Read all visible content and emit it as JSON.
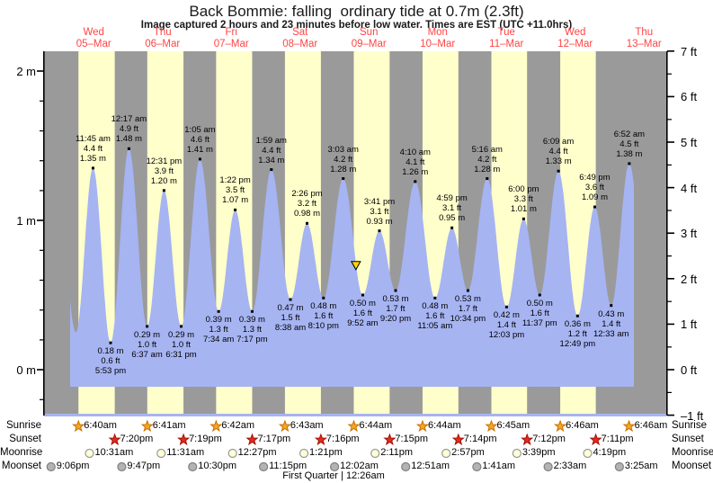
{
  "title": "Back Bommie: falling  ordinary tide at 0.7m (2.3ft)",
  "subtitle": "Image captured 2 hours and 23 minutes before low water. Times are EST (UTC +11.0hrs)",
  "footer": "First Quarter | 12:26am",
  "colors": {
    "night_band": "#9a9a9a",
    "day_band": "#ffffcc",
    "tide_fill": "#a6b4f2",
    "day_label": "#ff4444",
    "sunrise_star": "#f5a623",
    "sunrise_star_edge": "#c87000",
    "sunset_star": "#e8291c",
    "sunset_star_edge": "#9c130a",
    "moonrise_circle": "#ffffd8",
    "moonrise_edge": "#9a9a9a",
    "moonset_circle": "#b3b3b3",
    "moonset_edge": "#808080",
    "marker": "#ffd700"
  },
  "chart_data": {
    "type": "area",
    "title": "Back Bommie tide heights, 05-Mar to 13-Mar",
    "categories_days": [
      {
        "name": "Wed",
        "date": "05–Mar"
      },
      {
        "name": "Thu",
        "date": "06–Mar"
      },
      {
        "name": "Fri",
        "date": "07–Mar"
      },
      {
        "name": "Sat",
        "date": "08–Mar"
      },
      {
        "name": "Sun",
        "date": "09–Mar"
      },
      {
        "name": "Mon",
        "date": "10–Mar"
      },
      {
        "name": "Tue",
        "date": "11–Mar"
      },
      {
        "name": "Wed",
        "date": "12–Mar"
      },
      {
        "name": "Thu",
        "date": "13–Mar"
      }
    ],
    "y_axis": {
      "left_unit": "m",
      "right_unit": "ft",
      "range_m": [
        -0.305,
        2.134
      ],
      "left_ticks": [
        {
          "v": 0,
          "label": "0 m"
        },
        {
          "v": 1,
          "label": "1 m"
        },
        {
          "v": 2,
          "label": "2 m"
        }
      ],
      "left_minor_ticks_m": [
        -0.2,
        0.2,
        0.4,
        0.6,
        0.8,
        1.2,
        1.4,
        1.6,
        1.8
      ],
      "right_ticks": [
        {
          "v": -1,
          "label": "–1 ft"
        },
        {
          "v": 0,
          "label": "0 ft"
        },
        {
          "v": 1,
          "label": "1 ft"
        },
        {
          "v": 2,
          "label": "2 ft"
        },
        {
          "v": 3,
          "label": "3 ft"
        },
        {
          "v": 4,
          "label": "4 ft"
        },
        {
          "v": 5,
          "label": "5 ft"
        },
        {
          "v": 6,
          "label": "6 ft"
        },
        {
          "v": 7,
          "label": "7 ft"
        }
      ]
    },
    "tides": [
      {
        "kind": "high",
        "time": "11:45 am",
        "ft": "4.4 ft",
        "m": "1.35 m",
        "day": 0,
        "hour": 11.75,
        "height_m": 1.35
      },
      {
        "kind": "low",
        "time": "5:53 pm",
        "ft": "0.6 ft",
        "m": "0.18 m",
        "day": 0,
        "hour": 17.883,
        "height_m": 0.18
      },
      {
        "kind": "high",
        "time": "12:17 am",
        "ft": "4.9 ft",
        "m": "1.48 m",
        "day": 1,
        "hour": 0.283,
        "height_m": 1.48
      },
      {
        "kind": "low",
        "time": "6:37 am",
        "ft": "1.0 ft",
        "m": "0.29 m",
        "day": 1,
        "hour": 6.617,
        "height_m": 0.29
      },
      {
        "kind": "high",
        "time": "12:31 pm",
        "ft": "3.9 ft",
        "m": "1.20 m",
        "day": 1,
        "hour": 12.517,
        "height_m": 1.2
      },
      {
        "kind": "low",
        "time": "6:31 pm",
        "ft": "1.0 ft",
        "m": "0.29 m",
        "day": 1,
        "hour": 18.517,
        "height_m": 0.29
      },
      {
        "kind": "high",
        "time": "1:05 am",
        "ft": "4.6 ft",
        "m": "1.41 m",
        "day": 2,
        "hour": 1.083,
        "height_m": 1.41
      },
      {
        "kind": "low",
        "time": "7:34 am",
        "ft": "1.3 ft",
        "m": "0.39 m",
        "day": 2,
        "hour": 7.567,
        "height_m": 0.39
      },
      {
        "kind": "high",
        "time": "1:22 pm",
        "ft": "3.5 ft",
        "m": "1.07 m",
        "day": 2,
        "hour": 13.367,
        "height_m": 1.07
      },
      {
        "kind": "low",
        "time": "7:17 pm",
        "ft": "1.3 ft",
        "m": "0.39 m",
        "day": 2,
        "hour": 19.283,
        "height_m": 0.39
      },
      {
        "kind": "high",
        "time": "1:59 am",
        "ft": "4.4 ft",
        "m": "1.34 m",
        "day": 3,
        "hour": 1.983,
        "height_m": 1.34
      },
      {
        "kind": "low",
        "time": "8:38 am",
        "ft": "1.5 ft",
        "m": "0.47 m",
        "day": 3,
        "hour": 8.633,
        "height_m": 0.47
      },
      {
        "kind": "high",
        "time": "2:26 pm",
        "ft": "3.2 ft",
        "m": "0.98 m",
        "day": 3,
        "hour": 14.433,
        "height_m": 0.98
      },
      {
        "kind": "low",
        "time": "8:10 pm",
        "ft": "1.6 ft",
        "m": "0.48 m",
        "day": 3,
        "hour": 20.167,
        "height_m": 0.48
      },
      {
        "kind": "high",
        "time": "3:03 am",
        "ft": "4.2 ft",
        "m": "1.28 m",
        "day": 4,
        "hour": 3.05,
        "height_m": 1.28
      },
      {
        "kind": "low",
        "time": "9:52 am",
        "ft": "1.6 ft",
        "m": "0.50 m",
        "day": 4,
        "hour": 9.867,
        "height_m": 0.5
      },
      {
        "kind": "high",
        "time": "3:41 pm",
        "ft": "3.1 ft",
        "m": "0.93 m",
        "day": 4,
        "hour": 15.683,
        "height_m": 0.93
      },
      {
        "kind": "low",
        "time": "9:20 pm",
        "ft": "1.7 ft",
        "m": "0.53 m",
        "day": 4,
        "hour": 21.333,
        "height_m": 0.53
      },
      {
        "kind": "high",
        "time": "4:10 am",
        "ft": "4.1 ft",
        "m": "1.26 m",
        "day": 5,
        "hour": 4.167,
        "height_m": 1.26
      },
      {
        "kind": "low",
        "time": "11:05 am",
        "ft": "1.6 ft",
        "m": "0.48 m",
        "day": 5,
        "hour": 11.083,
        "height_m": 0.48
      },
      {
        "kind": "high",
        "time": "4:59 pm",
        "ft": "3.1 ft",
        "m": "0.95 m",
        "day": 5,
        "hour": 16.983,
        "height_m": 0.95
      },
      {
        "kind": "low",
        "time": "10:34 pm",
        "ft": "1.7 ft",
        "m": "0.53 m",
        "day": 5,
        "hour": 22.567,
        "height_m": 0.53
      },
      {
        "kind": "high",
        "time": "5:16 am",
        "ft": "4.2 ft",
        "m": "1.28 m",
        "day": 6,
        "hour": 5.267,
        "height_m": 1.28
      },
      {
        "kind": "low",
        "time": "12:03 pm",
        "ft": "1.4 ft",
        "m": "0.42 m",
        "day": 6,
        "hour": 12.05,
        "height_m": 0.42
      },
      {
        "kind": "high",
        "time": "6:00 pm",
        "ft": "3.3 ft",
        "m": "1.01 m",
        "day": 6,
        "hour": 18.0,
        "height_m": 1.01
      },
      {
        "kind": "low",
        "time": "11:37 pm",
        "ft": "1.6 ft",
        "m": "0.50 m",
        "day": 6,
        "hour": 23.617,
        "height_m": 0.5
      },
      {
        "kind": "high",
        "time": "6:09 am",
        "ft": "4.4 ft",
        "m": "1.33 m",
        "day": 7,
        "hour": 6.15,
        "height_m": 1.33
      },
      {
        "kind": "low",
        "time": "12:49 pm",
        "ft": "1.2 ft",
        "m": "0.36 m",
        "day": 7,
        "hour": 12.817,
        "height_m": 0.36
      },
      {
        "kind": "high",
        "time": "6:49 pm",
        "ft": "3.6 ft",
        "m": "1.09 m",
        "day": 7,
        "hour": 18.817,
        "height_m": 1.09
      },
      {
        "kind": "low",
        "time": "12:33 am",
        "ft": "1.4 ft",
        "m": "0.43 m",
        "day": 8,
        "hour": 0.55,
        "height_m": 0.43
      },
      {
        "kind": "high",
        "time": "6:52 am",
        "ft": "4.5 ft",
        "m": "1.38 m",
        "day": 8,
        "hour": 6.867,
        "height_m": 1.38
      }
    ],
    "current_level_marker": {
      "height_m": 0.7,
      "day": 4,
      "hour": 7.483
    },
    "astro_rows": [
      {
        "label": "Sunrise",
        "icon": "sunrise-star",
        "events": [
          {
            "time": "6:40am",
            "day": 0,
            "hour": 6.667
          },
          {
            "time": "6:41am",
            "day": 1,
            "hour": 6.683
          },
          {
            "time": "6:42am",
            "day": 2,
            "hour": 6.7
          },
          {
            "time": "6:43am",
            "day": 3,
            "hour": 6.717
          },
          {
            "time": "6:44am",
            "day": 4,
            "hour": 6.733
          },
          {
            "time": "6:44am",
            "day": 5,
            "hour": 6.733
          },
          {
            "time": "6:45am",
            "day": 6,
            "hour": 6.75
          },
          {
            "time": "6:46am",
            "day": 7,
            "hour": 6.767
          },
          {
            "time": "6:46am",
            "day": 8,
            "hour": 6.767
          }
        ]
      },
      {
        "label": "Sunset",
        "icon": "sunset-star",
        "events": [
          {
            "time": "7:20pm",
            "day": 0,
            "hour": 19.333
          },
          {
            "time": "7:19pm",
            "day": 1,
            "hour": 19.317
          },
          {
            "time": "7:17pm",
            "day": 2,
            "hour": 19.283
          },
          {
            "time": "7:16pm",
            "day": 3,
            "hour": 19.267
          },
          {
            "time": "7:15pm",
            "day": 4,
            "hour": 19.25
          },
          {
            "time": "7:14pm",
            "day": 5,
            "hour": 19.233
          },
          {
            "time": "7:12pm",
            "day": 6,
            "hour": 19.2
          },
          {
            "time": "7:11pm",
            "day": 7,
            "hour": 19.183
          }
        ]
      },
      {
        "label": "Moonrise",
        "icon": "moonrise-circle",
        "events": [
          {
            "time": "10:31am",
            "day": 0,
            "hour": 10.517
          },
          {
            "time": "11:31am",
            "day": 1,
            "hour": 11.517
          },
          {
            "time": "12:27pm",
            "day": 2,
            "hour": 12.45
          },
          {
            "time": "1:21pm",
            "day": 3,
            "hour": 13.35
          },
          {
            "time": "2:11pm",
            "day": 4,
            "hour": 14.183
          },
          {
            "time": "2:57pm",
            "day": 5,
            "hour": 14.95
          },
          {
            "time": "3:39pm",
            "day": 6,
            "hour": 15.65
          },
          {
            "time": "4:19pm",
            "day": 7,
            "hour": 16.317
          }
        ]
      },
      {
        "label": "Moonset",
        "icon": "moonset-circle",
        "events": [
          {
            "time": "9:06pm",
            "day": -1,
            "hour": 21.1
          },
          {
            "time": "9:47pm",
            "day": 0,
            "hour": 21.783
          },
          {
            "time": "10:30pm",
            "day": 1,
            "hour": 22.5
          },
          {
            "time": "11:15pm",
            "day": 2,
            "hour": 23.25
          },
          {
            "time": "12:02am",
            "day": 4,
            "hour": 0.033
          },
          {
            "time": "12:51am",
            "day": 5,
            "hour": 0.85
          },
          {
            "time": "1:41am",
            "day": 6,
            "hour": 1.683
          },
          {
            "time": "2:33am",
            "day": 7,
            "hour": 2.55
          },
          {
            "time": "3:25am",
            "day": 8,
            "hour": 3.417
          }
        ]
      }
    ]
  }
}
